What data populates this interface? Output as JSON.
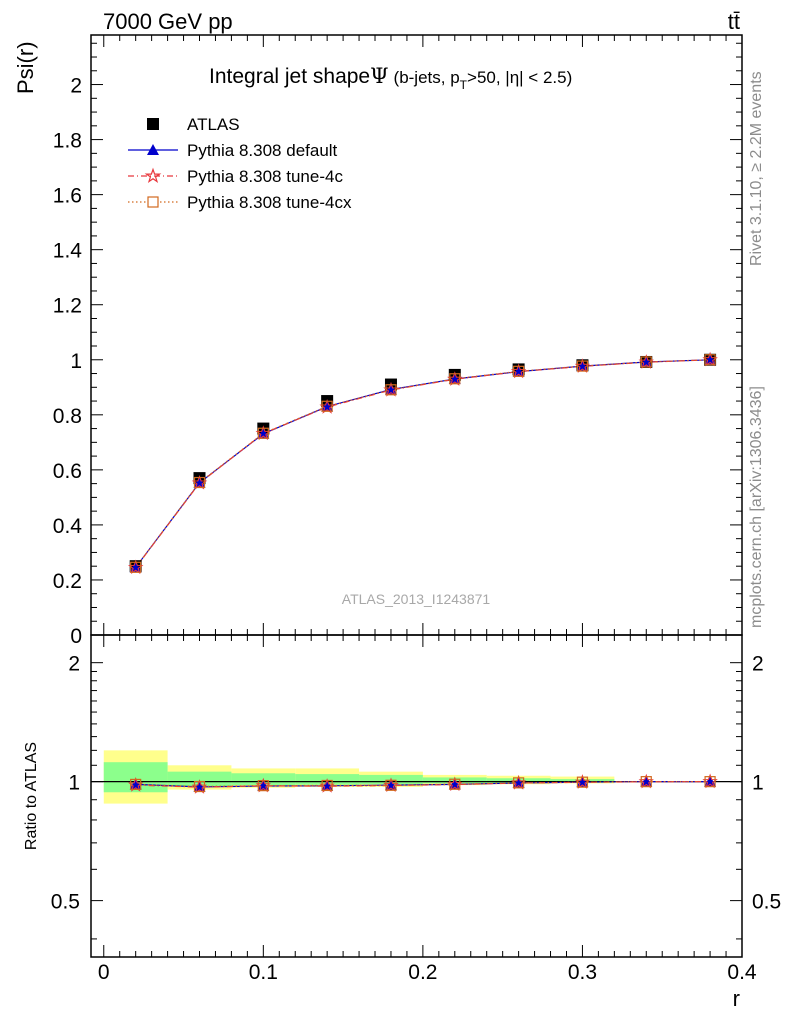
{
  "header": {
    "energy_label": "7000 GeV pp",
    "process_label": "tt̄"
  },
  "side_labels": {
    "rivet": "Rivet 3.1.10, ≥ 2.2M events",
    "mcplots": "mcplots.cern.ch [arXiv:1306.3436]"
  },
  "chart_data": [
    {
      "type": "scatter",
      "title": "Integral jet shape Ψ (b-jets, p_T>50, |η| < 2.5)",
      "title_main": "Integral jet shape",
      "title_symbol": "Ψ",
      "title_detail_pre": "(b-jets, p",
      "title_detail_sub": "T",
      "title_detail_post": ">50, |η| < 2.5)",
      "ylabel": "Psi(r)",
      "xlabel": "r",
      "watermark": "ATLAS_2013_I1243871",
      "xlim": [
        -0.008,
        0.4
      ],
      "ylim": [
        0,
        2.18
      ],
      "yticks": [
        0,
        0.2,
        0.4,
        0.6,
        0.8,
        1,
        1.2,
        1.4,
        1.6,
        1.8,
        2
      ],
      "ytick_labels": [
        "0",
        "0.2",
        "0.4",
        "0.6",
        "0.8",
        "1",
        "1.2",
        "1.4",
        "1.6",
        "1.8",
        "2"
      ],
      "grid": false,
      "legend_position": "top-left",
      "x": [
        0.02,
        0.06,
        0.1,
        0.14,
        0.18,
        0.22,
        0.26,
        0.3,
        0.34,
        0.38
      ],
      "series": [
        {
          "name": "ATLAS",
          "marker": "square",
          "color": "#000000",
          "values": [
            0.25,
            0.57,
            0.75,
            0.85,
            0.91,
            0.945,
            0.965,
            0.98,
            0.992,
            1.0
          ]
        },
        {
          "name": "Pythia 8.308 default",
          "marker": "triangle",
          "color": "#0000cc",
          "values": [
            0.246,
            0.553,
            0.731,
            0.83,
            0.892,
            0.93,
            0.957,
            0.977,
            0.992,
            1.0
          ]
        },
        {
          "name": "Pythia 8.308 tune-4c",
          "marker": "star",
          "color": "#e8383d",
          "values": [
            0.245,
            0.552,
            0.732,
            0.828,
            0.89,
            0.929,
            0.957,
            0.976,
            0.991,
            1.0
          ]
        },
        {
          "name": "Pythia 8.308 tune-4cx",
          "marker": "open-square",
          "color": "#d2691e",
          "values": [
            0.246,
            0.554,
            0.733,
            0.831,
            0.891,
            0.931,
            0.958,
            0.977,
            0.992,
            1.0
          ]
        }
      ]
    },
    {
      "type": "line",
      "ylabel": "Ratio to ATLAS",
      "xlabel": "r",
      "xlim": [
        -0.008,
        0.4
      ],
      "ylim": [
        0.36,
        2.35
      ],
      "yscale": "log",
      "yticks": [
        0.5,
        1,
        2
      ],
      "ytick_labels": [
        "0.5",
        "1",
        "2"
      ],
      "xticks": [
        0,
        0.1,
        0.2,
        0.3,
        0.4
      ],
      "xtick_labels": [
        "0",
        "0.1",
        "0.2",
        "0.3",
        "0.4"
      ],
      "x": [
        0.02,
        0.06,
        0.1,
        0.14,
        0.18,
        0.22,
        0.26,
        0.3,
        0.34,
        0.38
      ],
      "reference_line": 1,
      "uncertainty_bands": {
        "bin_edges": [
          0,
          0.04,
          0.08,
          0.12,
          0.16,
          0.2,
          0.24,
          0.28,
          0.32
        ],
        "outer_color": "#ffff8c",
        "inner_color": "#8cff8c",
        "outer_low": [
          0.88,
          0.955,
          0.965,
          0.97,
          0.97,
          0.98,
          0.985,
          0.99
        ],
        "outer_high": [
          1.2,
          1.1,
          1.08,
          1.08,
          1.06,
          1.04,
          1.035,
          1.03
        ],
        "inner_low": [
          0.94,
          0.975,
          0.98,
          0.982,
          0.985,
          0.99,
          0.992,
          0.994
        ],
        "inner_high": [
          1.12,
          1.06,
          1.05,
          1.045,
          1.04,
          1.025,
          1.02,
          1.015
        ]
      },
      "series": [
        {
          "name": "Pythia 8.308 default",
          "marker": "triangle",
          "color": "#0000cc",
          "values": [
            0.984,
            0.97,
            0.975,
            0.976,
            0.98,
            0.984,
            0.992,
            0.997,
            1.0,
            1.0
          ]
        },
        {
          "name": "Pythia 8.308 tune-4c",
          "marker": "star",
          "color": "#e8383d",
          "values": [
            0.98,
            0.968,
            0.976,
            0.974,
            0.978,
            0.983,
            0.992,
            0.996,
            0.999,
            1.0
          ]
        },
        {
          "name": "Pythia 8.308 tune-4cx",
          "marker": "open-square",
          "color": "#d2691e",
          "values": [
            0.984,
            0.972,
            0.977,
            0.978,
            0.979,
            0.985,
            0.993,
            0.997,
            1.0,
            1.0
          ]
        }
      ]
    }
  ]
}
